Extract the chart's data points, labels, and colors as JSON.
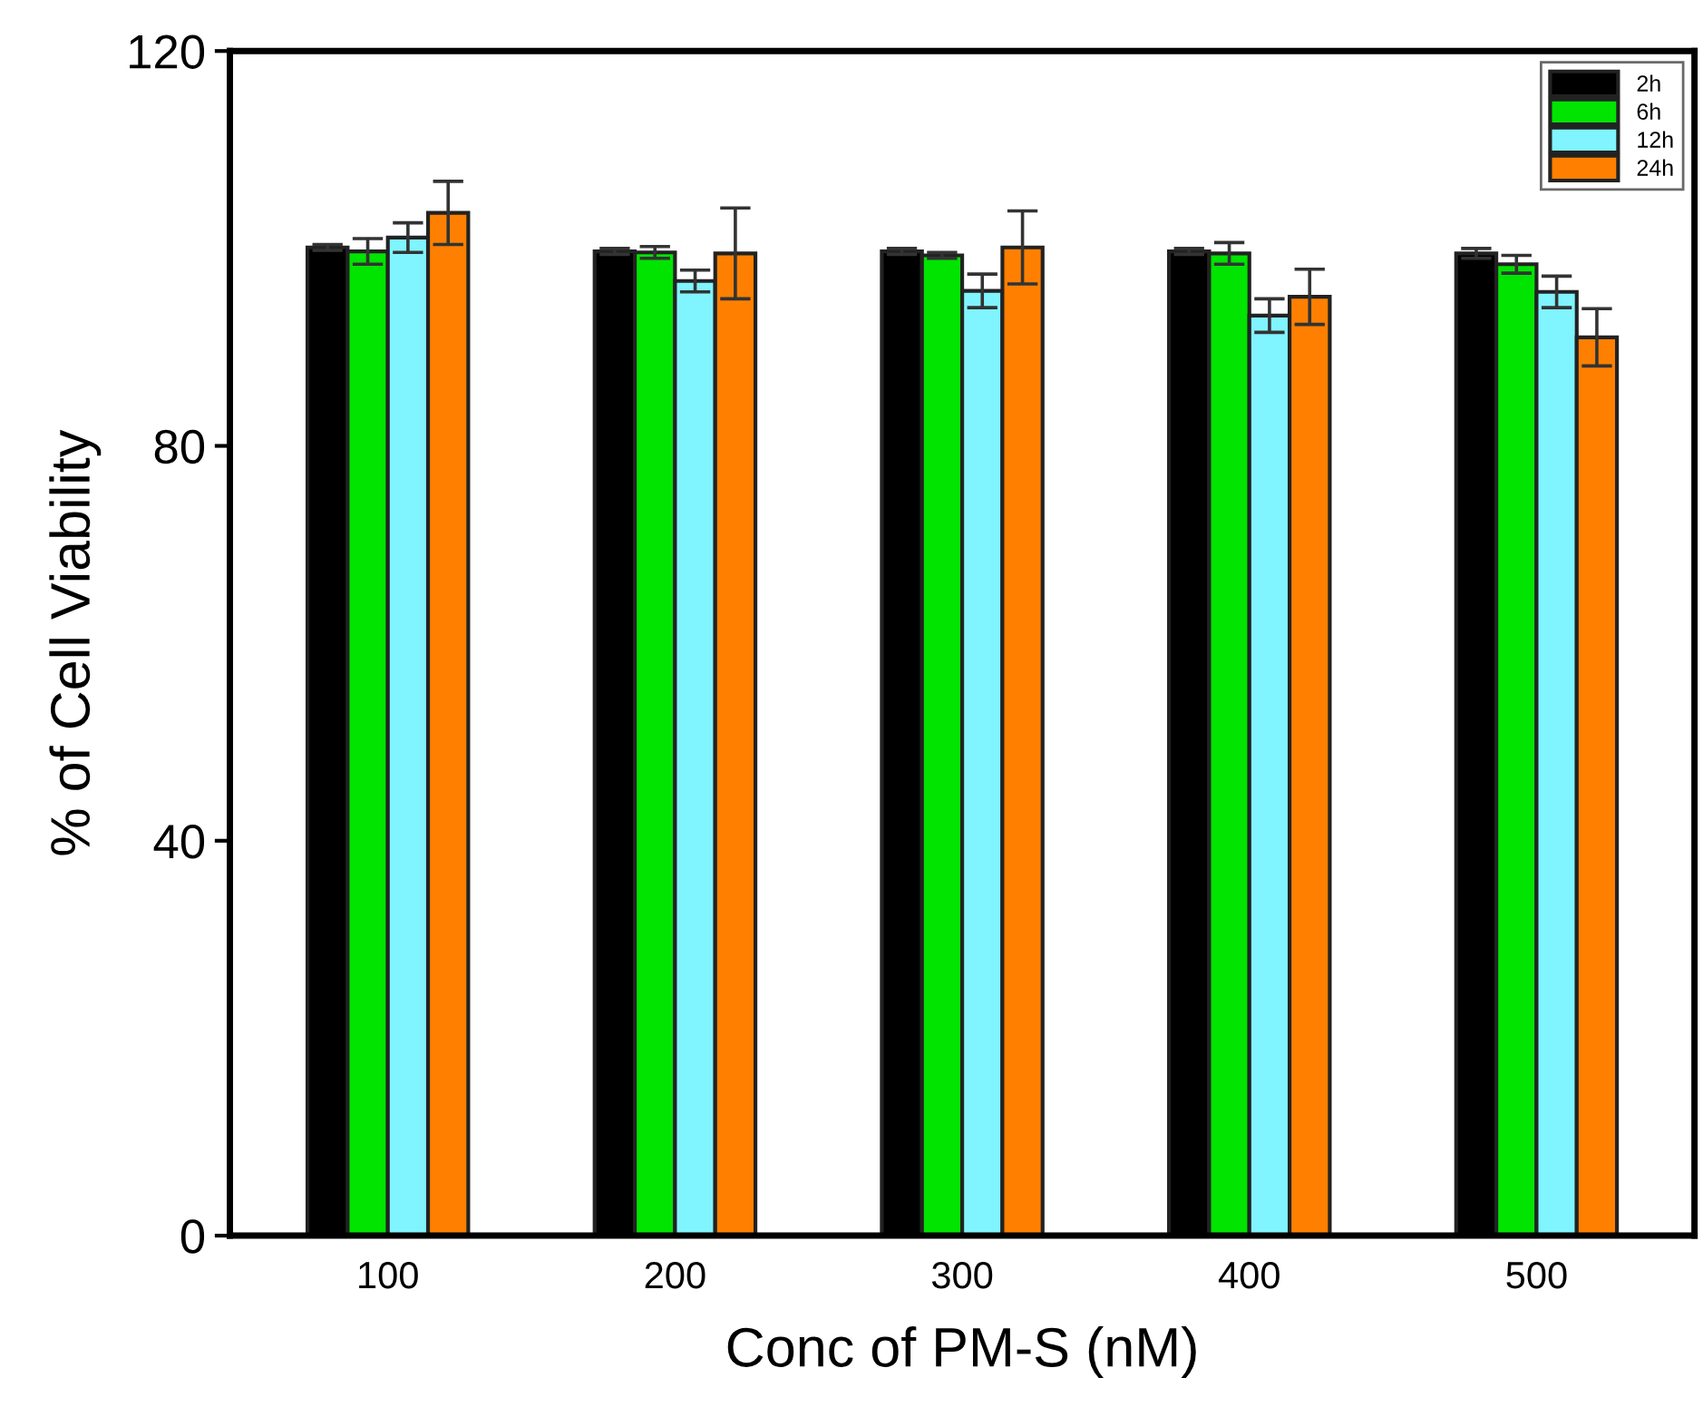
{
  "chart_data": {
    "type": "bar",
    "xlabel": "Conc of PM-S (nM)",
    "ylabel": "% of Cell Viability",
    "categories": [
      "100",
      "200",
      "300",
      "400",
      "500"
    ],
    "series": [
      {
        "name": "2h",
        "color": "#000000",
        "values": [
          100.1,
          99.7,
          99.7,
          99.7,
          99.5
        ],
        "errors": [
          0.3,
          0.3,
          0.3,
          0.3,
          0.5
        ]
      },
      {
        "name": "6h",
        "color": "#00e400",
        "values": [
          99.7,
          99.6,
          99.3,
          99.5,
          98.4
        ],
        "errors": [
          1.3,
          0.6,
          0.3,
          1.1,
          0.9
        ]
      },
      {
        "name": "12h",
        "color": "#80f4ff",
        "values": [
          101.1,
          96.7,
          95.7,
          93.2,
          95.6
        ],
        "errors": [
          1.5,
          1.1,
          1.7,
          1.7,
          1.6
        ]
      },
      {
        "name": "24h",
        "color": "#ff8000",
        "values": [
          103.6,
          99.5,
          100.1,
          95.1,
          91.0
        ],
        "errors": [
          3.2,
          4.6,
          3.7,
          2.8,
          2.9
        ]
      }
    ],
    "ylim": [
      0,
      120
    ],
    "yticks": [
      0,
      40,
      80,
      120
    ],
    "grid": false,
    "legend": "top right"
  }
}
